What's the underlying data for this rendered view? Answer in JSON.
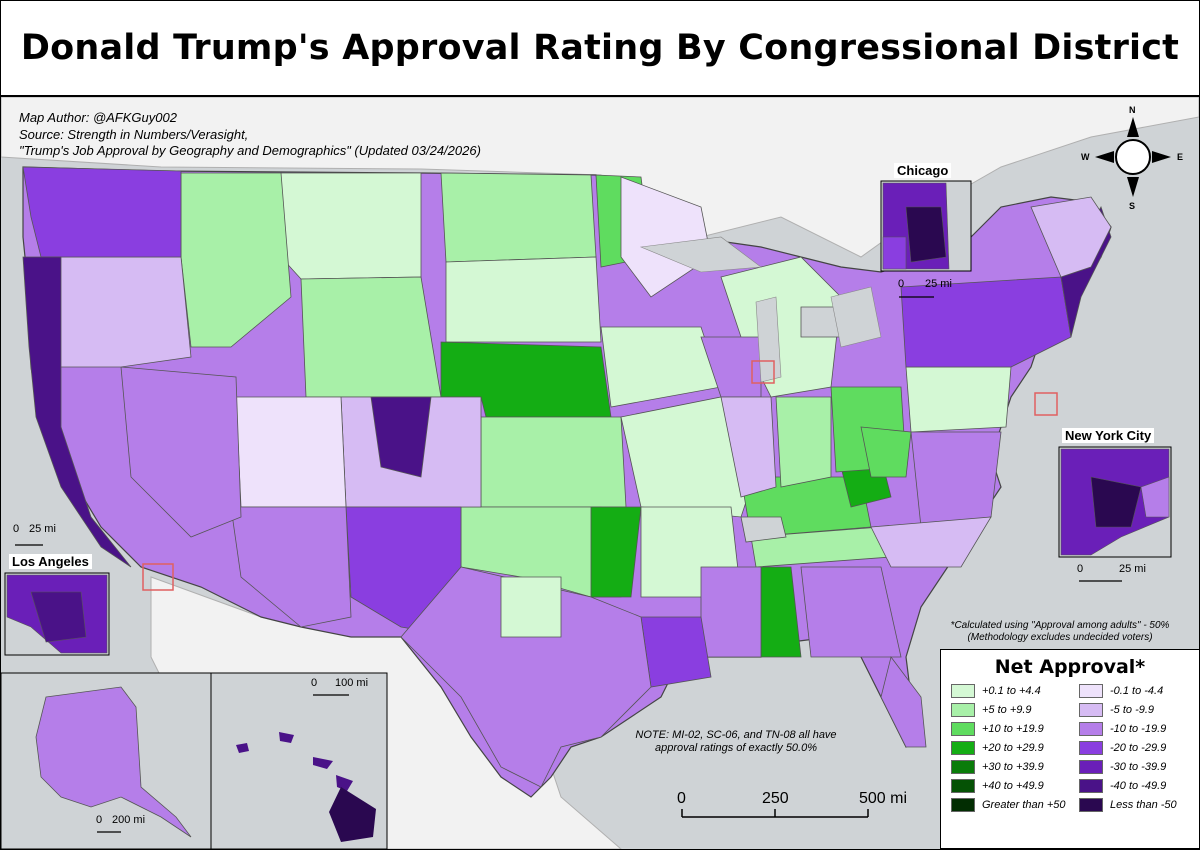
{
  "title": "Donald Trump's Approval Rating By Congressional District",
  "credits": {
    "author": "Map Author: @AFKGuy002",
    "source": "Source: Strength in Numbers/Verasight,",
    "source_title": "\"Trump's Job Approval by Geography and Demographics\" (Updated 03/24/2026)"
  },
  "insets": {
    "chicago": {
      "label": "Chicago",
      "scale_zero": "0",
      "scale_label": "25 mi"
    },
    "new_york": {
      "label": "New York City",
      "scale_zero": "0",
      "scale_label": "25 mi"
    },
    "los_angeles": {
      "label": "Los Angeles",
      "scale_zero": "0",
      "scale_label": "25 mi"
    },
    "alaska": {
      "scale_zero": "0",
      "scale_label": "200 mi"
    },
    "hawaii": {
      "scale_zero": "0",
      "scale_label": "100 mi"
    }
  },
  "compass": {
    "n": "N",
    "s": "S",
    "e": "E",
    "w": "W"
  },
  "main_scale": {
    "ticks": [
      "0",
      "250",
      "500 mi"
    ]
  },
  "notes": {
    "calculated": "*Calculated using \"Approval among adults\" - 50%",
    "methodology": "(Methodology excludes undecided voters)",
    "exact_line1": "NOTE: MI-02, SC-06, and TN-08 all have",
    "exact_line2": "approval ratings of exactly 50.0%"
  },
  "legend": {
    "title": "Net Approval*",
    "positive": [
      {
        "label": "+0.1 to +4.4",
        "color": "#d4f8d4"
      },
      {
        "label": "+5 to +9.9",
        "color": "#a8f0a8"
      },
      {
        "label": "+10 to +19.9",
        "color": "#5fdc5f"
      },
      {
        "label": "+20 to +29.9",
        "color": "#14ad14"
      },
      {
        "label": "+30 to +39.9",
        "color": "#0a7c0a"
      },
      {
        "label": "+40 to +49.9",
        "color": "#055205"
      },
      {
        "label": "Greater than +50",
        "color": "#022d02"
      }
    ],
    "negative": [
      {
        "label": "-0.1 to -4.4",
        "color": "#eee2fb"
      },
      {
        "label": "-5 to -9.9",
        "color": "#d6bbf3"
      },
      {
        "label": "-10 to -19.9",
        "color": "#b57ee9"
      },
      {
        "label": "-20 to -29.9",
        "color": "#8a3ee0"
      },
      {
        "label": "-30 to -39.9",
        "color": "#6a1fb8"
      },
      {
        "label": "-40 to -49.9",
        "color": "#4a1288"
      },
      {
        "label": "Less than -50",
        "color": "#2a0850"
      }
    ]
  },
  "colors": {
    "background": "#cfd3d6",
    "land_outside": "#f2f2f2",
    "border": "#555555",
    "inset_box": "#e06060"
  }
}
